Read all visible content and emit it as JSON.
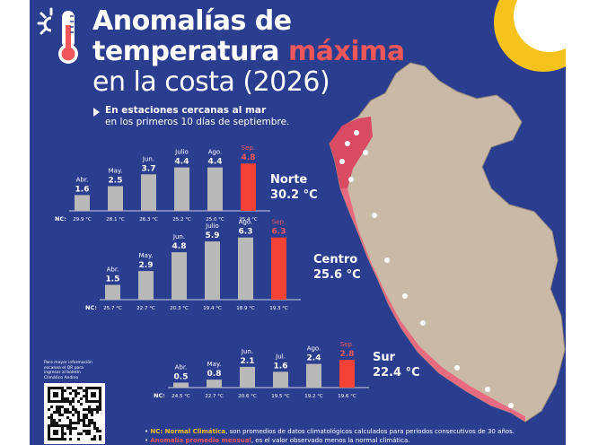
{
  "title": {
    "line1": "Anomalías de",
    "line2_a": "temperatura",
    "line2_b": "máxima",
    "line3": "en la costa (2026)"
  },
  "subtitle": {
    "bold": "En estaciones cercanas al mar",
    "normal": "en los primeros 10 días de septiembre."
  },
  "colors": {
    "background": "#2b3d8f",
    "bar_gray": "#b9b9b9",
    "bar_red": "#f44336",
    "accent_yellow": "#f6c21c",
    "map_land": "#c9b9a6",
    "map_coast": "#e85d74"
  },
  "icon": "thermometer-sun-icon",
  "nc_label": "NC:",
  "chart_data": [
    {
      "type": "bar",
      "region": "Norte",
      "region_temp": "30.2 °C",
      "categories": [
        "Abr.",
        "May.",
        "Jun.",
        "Julio",
        "Ago.",
        "Sep."
      ],
      "values": [
        1.6,
        2.5,
        3.7,
        4.4,
        4.4,
        4.8
      ],
      "value_labels": [
        "1.6",
        "2.5",
        "3.7",
        "4.4",
        "4.4",
        "4.8"
      ],
      "nc": [
        "29.9 °C",
        "28.1 °C",
        "26.3 °C",
        "25.2 °C",
        "25.0 °C",
        "25.4 °C"
      ],
      "highlight_index": 5
    },
    {
      "type": "bar",
      "region": "Centro",
      "region_temp": "25.6 °C",
      "categories": [
        "Abr.",
        "May.",
        "Jun.",
        "Julio",
        "Ago.",
        "Sep."
      ],
      "values": [
        1.5,
        2.9,
        4.8,
        5.9,
        6.3,
        6.3
      ],
      "value_labels": [
        "1.5",
        "2.9",
        "4.8",
        "5.9",
        "6.3",
        "6.3"
      ],
      "nc": [
        "25.7 °C",
        "22.7 °C",
        "20.3 °C",
        "19.4 °C",
        "18.9 °C",
        "19.3 °C"
      ],
      "highlight_index": 5
    },
    {
      "type": "bar",
      "region": "Sur",
      "region_temp": "22.4 °C",
      "categories": [
        "Abr.",
        "May.",
        "Jun.",
        "Jul.",
        "Ago.",
        "Sep."
      ],
      "values": [
        0.5,
        0.8,
        2.1,
        1.6,
        2.4,
        2.8
      ],
      "value_labels": [
        "0.5",
        "0.8",
        "2.1",
        "1.6",
        "2.4",
        "2.8"
      ],
      "nc": [
        "24.5 °C",
        "22.7 °C",
        "20.6 °C",
        "19.5 °C",
        "19.2 °C",
        "19.6 °C"
      ],
      "highlight_index": 5
    }
  ],
  "qr_note": "Para mayor información escanea el QR para ingresar al boletín Climático Andino",
  "footnote": {
    "line1_bold": "NC: Normal Climática",
    "line1_rest": ", son promedios de datos climatológicos calculados para periodos consecutivos de 30 años.",
    "line2_bold": "Anomalía promedio mensual",
    "line2_rest": ", es el valor observado menos la normal climática."
  }
}
